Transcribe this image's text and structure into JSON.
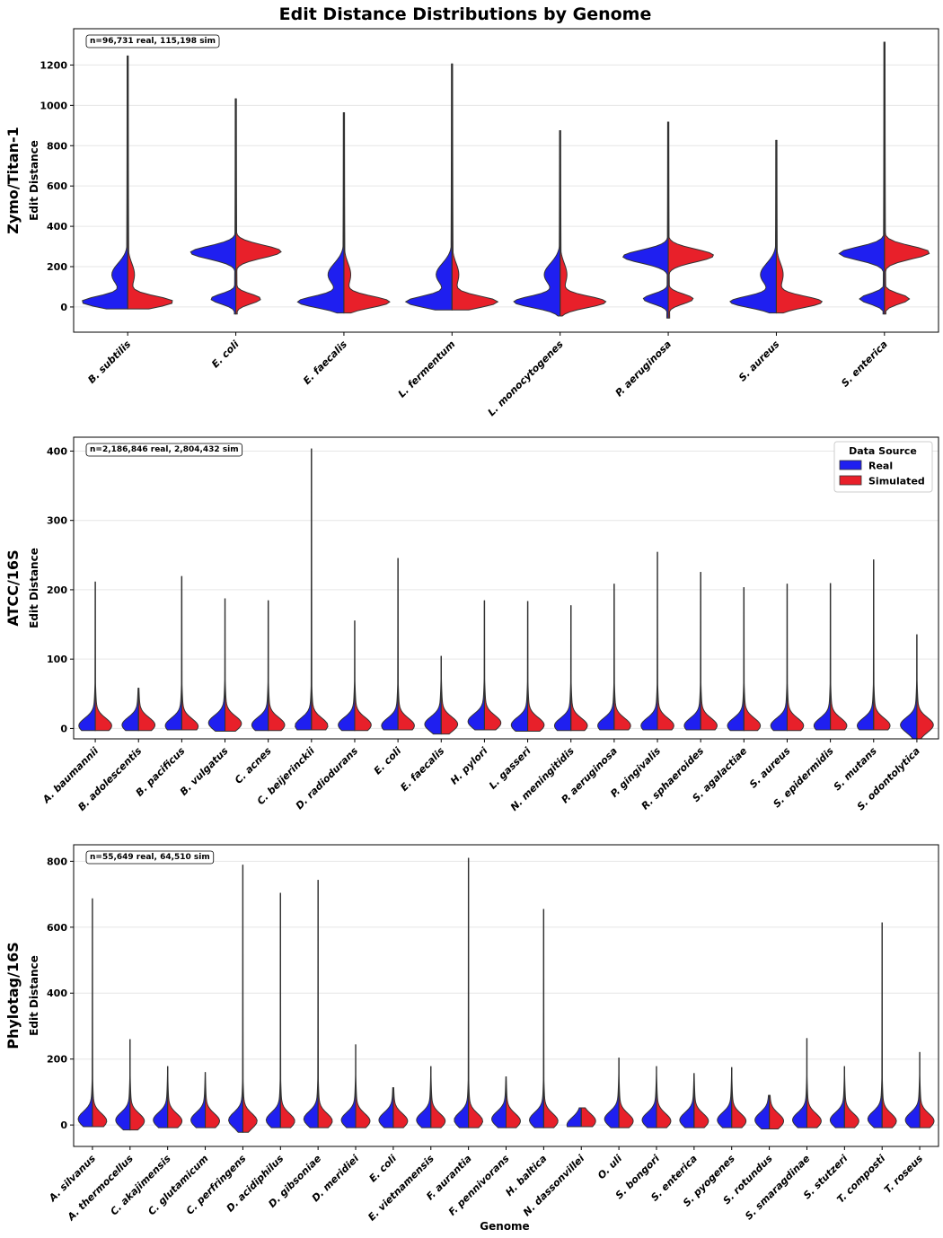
{
  "figure": {
    "title": "Edit Distance Distributions by Genome",
    "xlabel": "Genome",
    "legend": {
      "title": "Data Source",
      "entries": [
        {
          "label": "Real",
          "color": "#1f1ff0"
        },
        {
          "label": "Simulated",
          "color": "#e8202a"
        }
      ]
    },
    "colors": {
      "real": "#1f1ff0",
      "simulated": "#e8202a",
      "outline": "#333333",
      "grid": "#e6e6e6"
    }
  },
  "chart_data": [
    {
      "type": "violin",
      "title": "Zymo/Titan-1",
      "ylabel": "Edit Distance",
      "annotation": "n=96,731 real, 115,198 sim",
      "ylim": [
        -125,
        1380
      ],
      "yticks": [
        0,
        200,
        400,
        600,
        800,
        1000,
        1200
      ],
      "bimodal": true,
      "categories": [
        "B. subtilis",
        "E. coli",
        "E. faecalis",
        "L. fermentum",
        "L. monocytogenes",
        "P. aeruginosa",
        "S. aureus",
        "S. enterica"
      ],
      "max": [
        1245,
        1032,
        963,
        1205,
        874,
        917,
        826,
        1313
      ],
      "min": [
        -10,
        -35,
        -30,
        -15,
        -45,
        -55,
        -30,
        -35
      ],
      "real_peak": [
        10,
        270,
        20,
        15,
        30,
        250,
        30,
        265
      ],
      "sim_peak": [
        25,
        275,
        30,
        25,
        35,
        255,
        30,
        270
      ]
    },
    {
      "type": "violin",
      "title": "ATCC/16S",
      "ylabel": "Edit Distance",
      "annotation": "n=2,186,846 real, 2,804,432 sim",
      "ylim": [
        -15,
        420
      ],
      "yticks": [
        0,
        100,
        200,
        300,
        400
      ],
      "bimodal": false,
      "categories": [
        "A. baumannii",
        "B. adolescentis",
        "B. pacificus",
        "B. vulgatus",
        "C. acnes",
        "C. beijerinckii",
        "D. radiodurans",
        "E. coli",
        "E. faecalis",
        "H. pylori",
        "L. gasseri",
        "N. meningitidis",
        "P. aeruginosa",
        "P. gingivalis",
        "R. sphaeroides",
        "S. agalactiae",
        "S. aureus",
        "S. epidermidis",
        "S. mutans",
        "S. odontolytica"
      ],
      "max": [
        211,
        58,
        219,
        187,
        184,
        403,
        155,
        245,
        104,
        184,
        183,
        177,
        208,
        254,
        225,
        203,
        208,
        209,
        243,
        135
      ],
      "min": [
        -3,
        -3,
        -2,
        -4,
        -3,
        -2,
        -3,
        -2,
        -8,
        -2,
        -4,
        -3,
        -2,
        -2,
        -2,
        -3,
        -3,
        -2,
        -2,
        -15
      ],
      "real_peak": [
        4,
        5,
        4,
        8,
        5,
        4,
        5,
        4,
        6,
        10,
        5,
        4,
        4,
        4,
        4,
        4,
        4,
        4,
        4,
        5
      ],
      "sim_peak": [
        4,
        5,
        3,
        7,
        5,
        4,
        5,
        4,
        6,
        8,
        5,
        4,
        4,
        4,
        4,
        4,
        4,
        4,
        4,
        5
      ]
    },
    {
      "type": "violin",
      "title": "Phylotag/16S",
      "ylabel": "Edit Distance",
      "annotation": "n=55,649 real, 64,510 sim",
      "ylim": [
        -65,
        850
      ],
      "yticks": [
        0,
        200,
        400,
        600,
        800
      ],
      "bimodal": false,
      "categories": [
        "A. silvanus",
        "A. thermocellus",
        "C. akajimensis",
        "C. glutamicum",
        "C. perfringens",
        "D. acidiphilus",
        "D. gibsoniae",
        "D. meridiei",
        "E. coli",
        "E. vietnamensis",
        "F. aurantia",
        "F. pennivorans",
        "H. baltica",
        "N. dassonvillei",
        "O. uli",
        "S. bongori",
        "S. enterica",
        "S. pyogenes",
        "S. rotundus",
        "S. smaragdinae",
        "S. stutzeri",
        "T. composti",
        "T. roseus"
      ],
      "max": [
        686,
        259,
        177,
        159,
        788,
        703,
        742,
        243,
        113,
        177,
        809,
        146,
        654,
        52,
        203,
        177,
        156,
        174,
        90,
        262,
        177,
        613,
        220
      ],
      "min": [
        -5,
        -15,
        -8,
        -8,
        -22,
        -8,
        -8,
        -8,
        -8,
        -8,
        -8,
        -8,
        -8,
        -5,
        -8,
        -8,
        -8,
        -8,
        -12,
        -8,
        -8,
        -8,
        -8
      ],
      "real_peak": [
        18,
        15,
        15,
        15,
        15,
        15,
        18,
        15,
        15,
        15,
        15,
        18,
        15,
        0,
        18,
        15,
        15,
        15,
        15,
        15,
        15,
        18,
        15
      ],
      "sim_peak": [
        12,
        12,
        12,
        12,
        12,
        12,
        12,
        12,
        12,
        12,
        12,
        12,
        12,
        12,
        12,
        12,
        12,
        12,
        12,
        12,
        12,
        12,
        12
      ]
    }
  ]
}
